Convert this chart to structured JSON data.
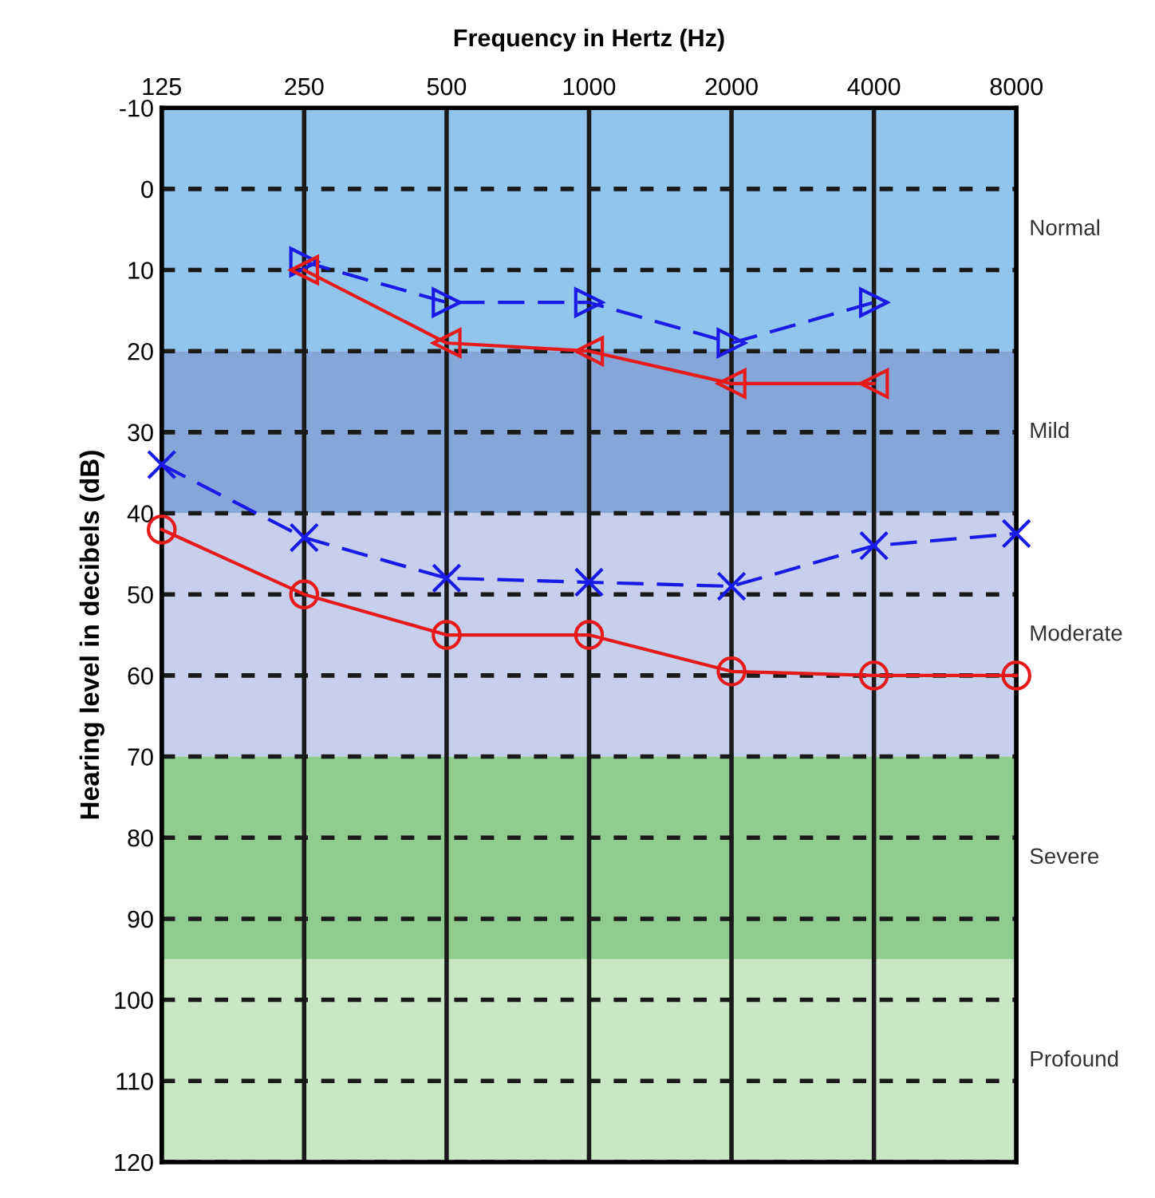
{
  "chart_data": {
    "type": "line",
    "xlabel": "Frequency in Hertz (Hz)",
    "ylabel": "Hearing level in decibels (dB)",
    "log": "x",
    "xlim": [
      125,
      8000
    ],
    "xticks": [
      125,
      250,
      500,
      1000,
      2000,
      4000,
      8000
    ],
    "ylim": [
      120,
      -10
    ],
    "yticks": [
      -10,
      0,
      10,
      20,
      30,
      40,
      50,
      60,
      70,
      80,
      90,
      100,
      110,
      120
    ],
    "grid": true,
    "legend": false,
    "bands": [
      {
        "axis": "y",
        "from": -10,
        "to": 20,
        "label": "Normal",
        "color": "#92c5ec"
      },
      {
        "axis": "y",
        "from": 20,
        "to": 40,
        "label": "Mild",
        "color": "#85a6d9"
      },
      {
        "axis": "y",
        "from": 40,
        "to": 70,
        "label": "Moderate",
        "color": "#c6cfec"
      },
      {
        "axis": "y",
        "from": 70,
        "to": 95,
        "label": "Severe",
        "color": "#8fcc8e"
      },
      {
        "axis": "y",
        "from": 95,
        "to": 120,
        "label": "Profound",
        "color": "#c9e7c5"
      }
    ],
    "series": [
      {
        "color": "#1a1ae6",
        "marker": "triangle-right",
        "line_style": "dashed",
        "x": [
          250,
          500,
          1000,
          2000,
          4000
        ],
        "values": [
          9,
          14,
          14,
          19,
          14
        ]
      },
      {
        "color": "#e61a1a",
        "marker": "triangle-left",
        "line_style": "solid",
        "x": [
          250,
          500,
          1000,
          2000,
          4000
        ],
        "values": [
          10,
          19,
          20,
          24,
          24
        ]
      },
      {
        "color": "#1a1ae6",
        "marker": "cross",
        "line_style": "dashed",
        "x": [
          125,
          250,
          500,
          1000,
          2000,
          4000,
          8000
        ],
        "values": [
          34,
          43,
          48,
          48.5,
          49,
          44,
          42.5
        ]
      },
      {
        "color": "#e61a1a",
        "marker": "circle",
        "line_style": "solid",
        "x": [
          125,
          250,
          500,
          1000,
          2000,
          4000,
          8000
        ],
        "values": [
          42,
          50,
          55,
          55,
          59.5,
          60,
          60
        ]
      }
    ]
  }
}
